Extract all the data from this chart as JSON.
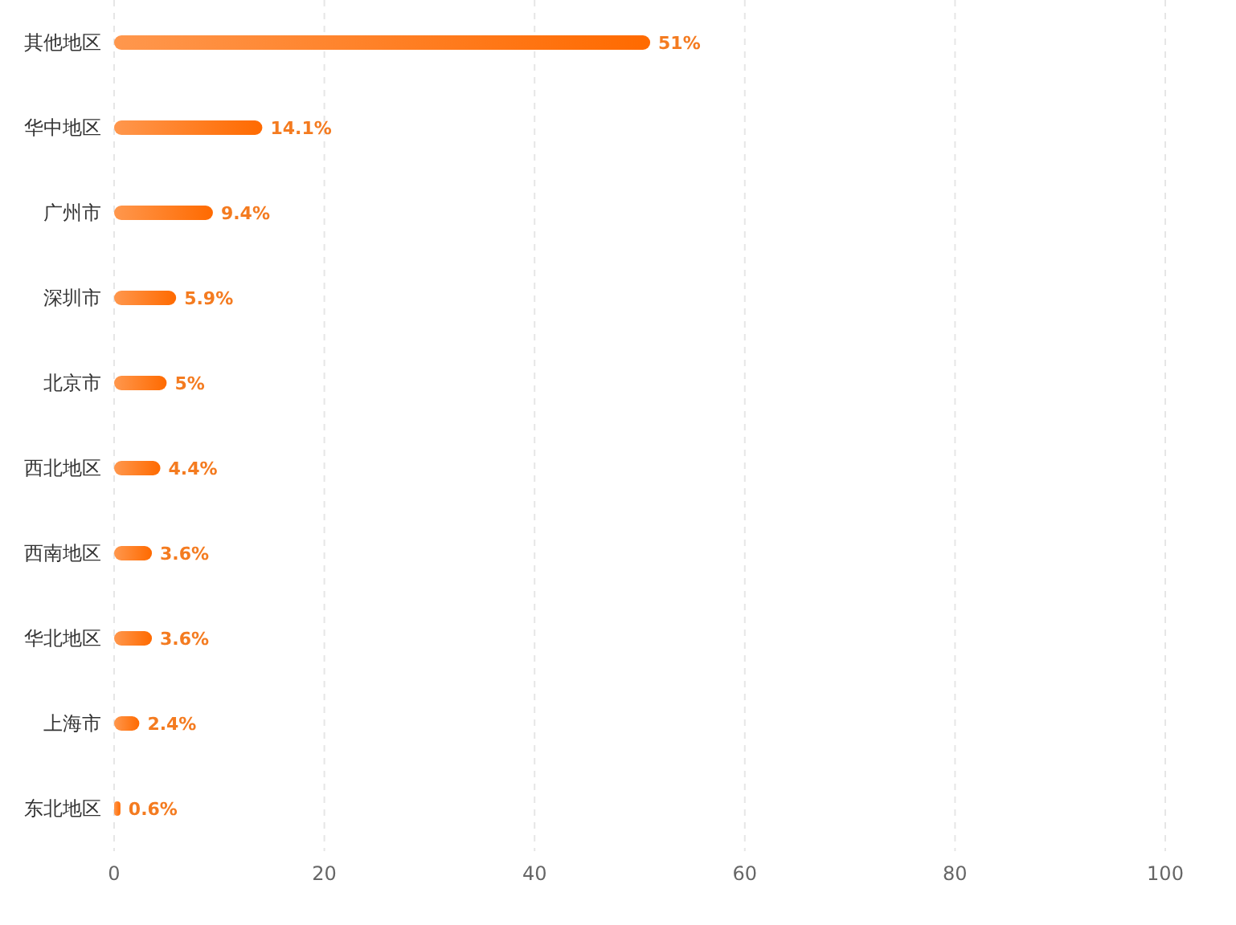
{
  "chart_data": {
    "type": "bar",
    "orientation": "horizontal",
    "categories": [
      "其他地区",
      "华中地区",
      "广州市",
      "深圳市",
      "北京市",
      "西北地区",
      "西南地区",
      "华北地区",
      "上海市",
      "东北地区"
    ],
    "values": [
      51,
      14.1,
      9.4,
      5.9,
      5,
      4.4,
      3.6,
      3.6,
      2.4,
      0.6
    ],
    "value_labels": [
      "51%",
      "14.1%",
      "9.4%",
      "5.9%",
      "5%",
      "4.4%",
      "3.6%",
      "3.6%",
      "2.4%",
      "0.6%"
    ],
    "color": "#ff6a00",
    "xlim": [
      0,
      100
    ],
    "xticks": [
      0,
      20,
      40,
      60,
      80,
      100
    ],
    "grid": "x"
  }
}
